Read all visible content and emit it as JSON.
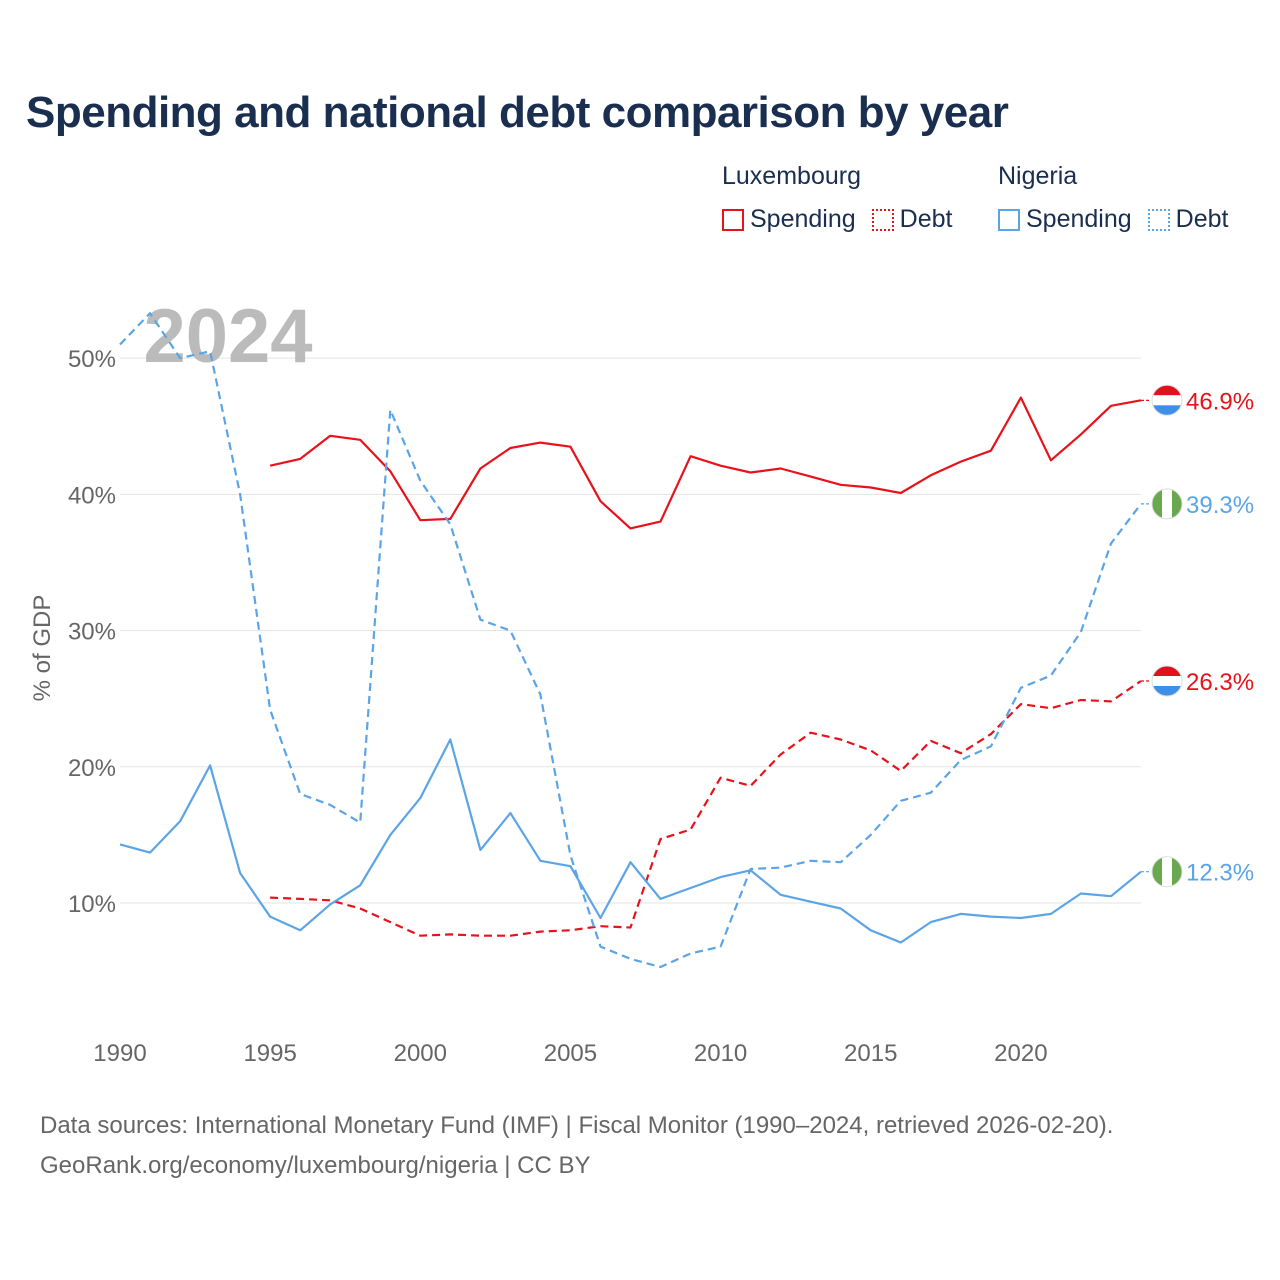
{
  "title": "Spending and national debt comparison by year",
  "legend": {
    "groups": [
      {
        "name": "Luxembourg",
        "color": "#e8121b",
        "items": [
          {
            "label": "Spending",
            "style": "solid"
          },
          {
            "label": "Debt",
            "style": "dotted"
          }
        ]
      },
      {
        "name": "Nigeria",
        "color": "#5ba4e6",
        "items": [
          {
            "label": "Spending",
            "style": "solid"
          },
          {
            "label": "Debt",
            "style": "dotted"
          }
        ]
      }
    ]
  },
  "year_label": "2024",
  "footer": {
    "line1": "Data sources: International Monetary Fund (IMF) | Fiscal Monitor (1990–2024, retrieved 2026-02-20).",
    "line2": "GeoRank.org/economy/luxembourg/nigeria | CC BY"
  },
  "chart_data": {
    "type": "line",
    "ylabel": "% of GDP",
    "xlabel": "",
    "xlim": [
      1990,
      2024
    ],
    "ylim": [
      2,
      55
    ],
    "x_ticks": [
      1990,
      1995,
      2000,
      2005,
      2010,
      2015,
      2020
    ],
    "y_ticks": [
      10,
      20,
      30,
      40,
      50
    ],
    "y_tick_labels": [
      "10%",
      "20%",
      "30%",
      "40%",
      "50%"
    ],
    "series": [
      {
        "name": "Luxembourg Spending",
        "country": "Luxembourg",
        "flag": "luxembourg",
        "color": "#e8121b",
        "dash": false,
        "x": [
          1995,
          1996,
          1997,
          1998,
          1999,
          2000,
          2001,
          2002,
          2003,
          2004,
          2005,
          2006,
          2007,
          2008,
          2009,
          2010,
          2011,
          2012,
          2013,
          2014,
          2015,
          2016,
          2017,
          2018,
          2019,
          2020,
          2021,
          2022,
          2023,
          2024
        ],
        "values": [
          42.1,
          42.6,
          44.3,
          44.0,
          41.7,
          38.1,
          38.2,
          41.9,
          43.4,
          43.8,
          43.5,
          39.5,
          37.5,
          38.0,
          42.8,
          42.1,
          41.6,
          41.9,
          41.3,
          40.7,
          40.5,
          40.1,
          41.4,
          42.4,
          43.2,
          47.1,
          42.5,
          44.4,
          46.5,
          46.9
        ],
        "end_label": "46.9%"
      },
      {
        "name": "Luxembourg Debt",
        "country": "Luxembourg",
        "flag": "luxembourg",
        "color": "#e8121b",
        "dash": true,
        "x": [
          1995,
          1996,
          1997,
          1998,
          1999,
          2000,
          2001,
          2002,
          2003,
          2004,
          2005,
          2006,
          2007,
          2008,
          2009,
          2010,
          2011,
          2012,
          2013,
          2014,
          2015,
          2016,
          2017,
          2018,
          2019,
          2020,
          2021,
          2022,
          2023,
          2024
        ],
        "values": [
          10.4,
          10.3,
          10.2,
          9.6,
          8.6,
          7.6,
          7.7,
          7.6,
          7.6,
          7.9,
          8.0,
          8.3,
          8.2,
          14.7,
          15.4,
          19.2,
          18.6,
          20.9,
          22.5,
          22.0,
          21.2,
          19.7,
          21.9,
          21.0,
          22.4,
          24.6,
          24.3,
          24.9,
          24.8,
          26.3
        ],
        "end_label": "26.3%"
      },
      {
        "name": "Nigeria Spending",
        "country": "Nigeria",
        "flag": "nigeria",
        "color": "#5ba4e6",
        "dash": false,
        "x": [
          1990,
          1991,
          1992,
          1993,
          1994,
          1995,
          1996,
          1997,
          1998,
          1999,
          2000,
          2001,
          2002,
          2003,
          2004,
          2005,
          2006,
          2007,
          2008,
          2009,
          2010,
          2011,
          2012,
          2013,
          2014,
          2015,
          2016,
          2017,
          2018,
          2019,
          2020,
          2021,
          2022,
          2023,
          2024
        ],
        "values": [
          14.3,
          13.7,
          16.0,
          20.1,
          12.2,
          9.0,
          8.0,
          9.9,
          11.3,
          15.0,
          17.7,
          22.0,
          13.9,
          16.6,
          13.1,
          12.7,
          8.9,
          13.0,
          10.3,
          11.1,
          11.9,
          12.4,
          10.6,
          10.1,
          9.6,
          8.0,
          7.1,
          8.6,
          9.2,
          9.0,
          8.9,
          9.2,
          10.7,
          10.5,
          12.3
        ],
        "end_label": "12.3%"
      },
      {
        "name": "Nigeria Debt",
        "country": "Nigeria",
        "flag": "nigeria",
        "color": "#5ba4e6",
        "dash": true,
        "x": [
          1990,
          1991,
          1992,
          1993,
          1994,
          1995,
          1996,
          1997,
          1998,
          1999,
          2000,
          2001,
          2002,
          2003,
          2004,
          2005,
          2006,
          2007,
          2008,
          2009,
          2010,
          2011,
          2012,
          2013,
          2014,
          2015,
          2016,
          2017,
          2018,
          2019,
          2020,
          2021,
          2022,
          2023,
          2024
        ],
        "values": [
          51.0,
          53.3,
          50.0,
          50.5,
          40.0,
          24.2,
          18.0,
          17.2,
          15.9,
          46.2,
          41.0,
          37.8,
          30.8,
          30.0,
          25.3,
          13.5,
          6.8,
          5.9,
          5.3,
          6.3,
          6.8,
          12.5,
          12.6,
          13.1,
          13.0,
          15.0,
          17.5,
          18.1,
          20.5,
          21.5,
          25.8,
          26.7,
          29.9,
          36.4,
          39.3
        ],
        "end_label": "39.3%"
      }
    ]
  }
}
